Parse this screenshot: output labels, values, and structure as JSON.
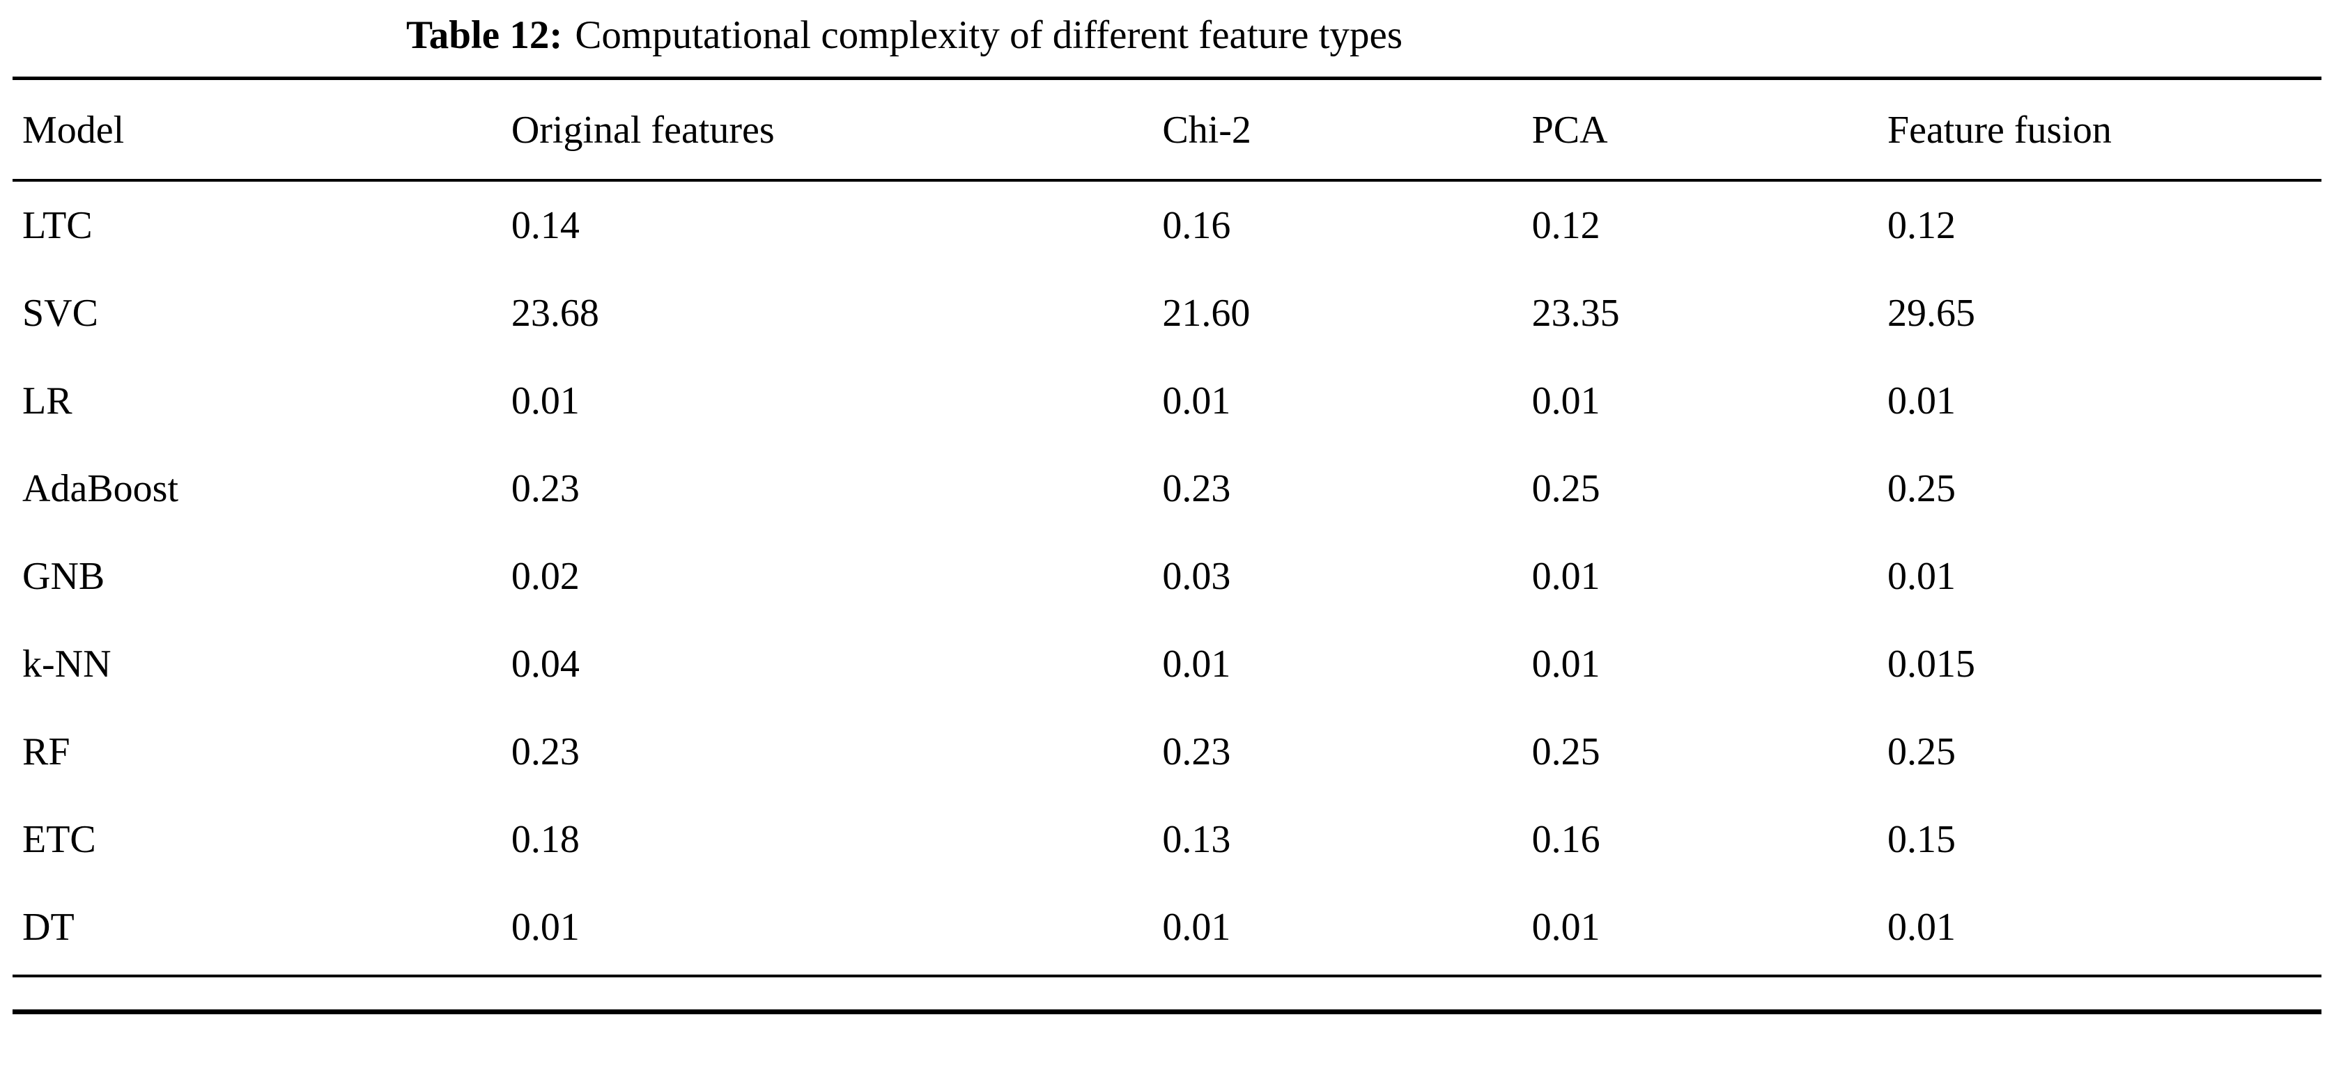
{
  "caption": {
    "label": "Table 12:",
    "text": "Computational complexity of different feature types"
  },
  "table": {
    "columns": [
      "Model",
      "Original features",
      "Chi-2",
      "PCA",
      "Feature fusion"
    ],
    "rows": [
      [
        "LTC",
        "0.14",
        "0.16",
        "0.12",
        "0.12"
      ],
      [
        "SVC",
        "23.68",
        "21.60",
        "23.35",
        "29.65"
      ],
      [
        "LR",
        "0.01",
        "0.01",
        "0.01",
        "0.01"
      ],
      [
        "AdaBoost",
        "0.23",
        "0.23",
        "0.25",
        "0.25"
      ],
      [
        "GNB",
        "0.02",
        "0.03",
        "0.01",
        "0.01"
      ],
      [
        "k-NN",
        "0.04",
        "0.01",
        "0.01",
        "0.015"
      ],
      [
        "RF",
        "0.23",
        "0.23",
        "0.25",
        "0.25"
      ],
      [
        "ETC",
        "0.18",
        "0.13",
        "0.16",
        "0.15"
      ],
      [
        "DT",
        "0.01",
        "0.01",
        "0.01",
        "0.01"
      ]
    ]
  }
}
